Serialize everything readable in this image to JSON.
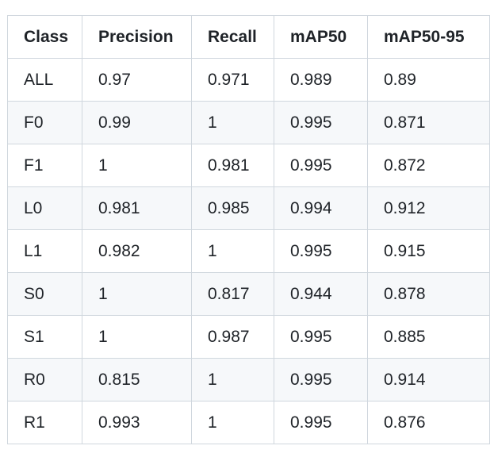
{
  "table": {
    "headers": [
      "Class",
      "Precision",
      "Recall",
      "mAP50",
      "mAP50-95"
    ],
    "rows": [
      [
        "ALL",
        "0.97",
        "0.971",
        "0.989",
        "0.89"
      ],
      [
        "F0",
        "0.99",
        "1",
        "0.995",
        "0.871"
      ],
      [
        "F1",
        "1",
        "0.981",
        "0.995",
        "0.872"
      ],
      [
        "L0",
        "0.981",
        "0.985",
        "0.994",
        "0.912"
      ],
      [
        "L1",
        "0.982",
        "1",
        "0.995",
        "0.915"
      ],
      [
        "S0",
        "1",
        "0.817",
        "0.944",
        "0.878"
      ],
      [
        "S1",
        "1",
        "0.987",
        "0.995",
        "0.885"
      ],
      [
        "R0",
        "0.815",
        "1",
        "0.995",
        "0.914"
      ],
      [
        "R1",
        "0.993",
        "1",
        "0.995",
        "0.876"
      ]
    ]
  },
  "colors": {
    "border": "#d0d7de",
    "stripe": "#f6f8fa",
    "text": "#1f2328"
  }
}
